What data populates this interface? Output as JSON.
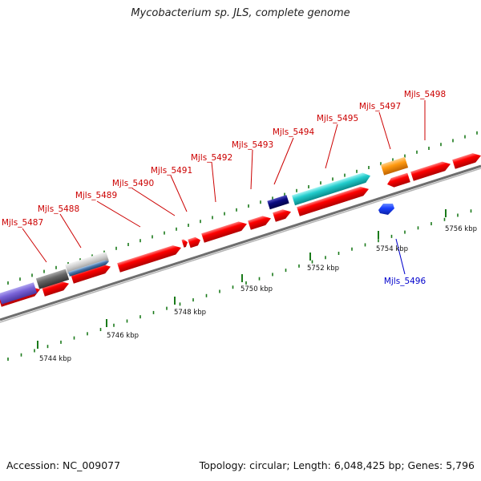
{
  "title": "Mycobacterium sp. JLS, complete genome",
  "footer": {
    "accession": "Accession: NC_009077",
    "summary": "Topology: circular; Length: 6,048,425 bp; Genes: 5,796"
  },
  "colors": {
    "gene_red": "#ff0000",
    "label_red": "#cc0000",
    "label_blue": "#0000cc",
    "tick_green": "#1a7a1a",
    "backbone_gray": "#999999"
  },
  "ruler_labels": [
    "5744 kbp",
    "5746 kbp",
    "5748 kbp",
    "5750 kbp",
    "5752 kbp",
    "5754 kbp",
    "5756 kbp"
  ],
  "gene_labels": [
    "Mjls_5487",
    "Mjls_5488",
    "Mjls_5489",
    "Mjls_5490",
    "Mjls_5491",
    "Mjls_5492",
    "Mjls_5493",
    "Mjls_5494",
    "Mjls_5495",
    "Mjls_5497",
    "Mjls_5498",
    "Mjls_5496"
  ]
}
